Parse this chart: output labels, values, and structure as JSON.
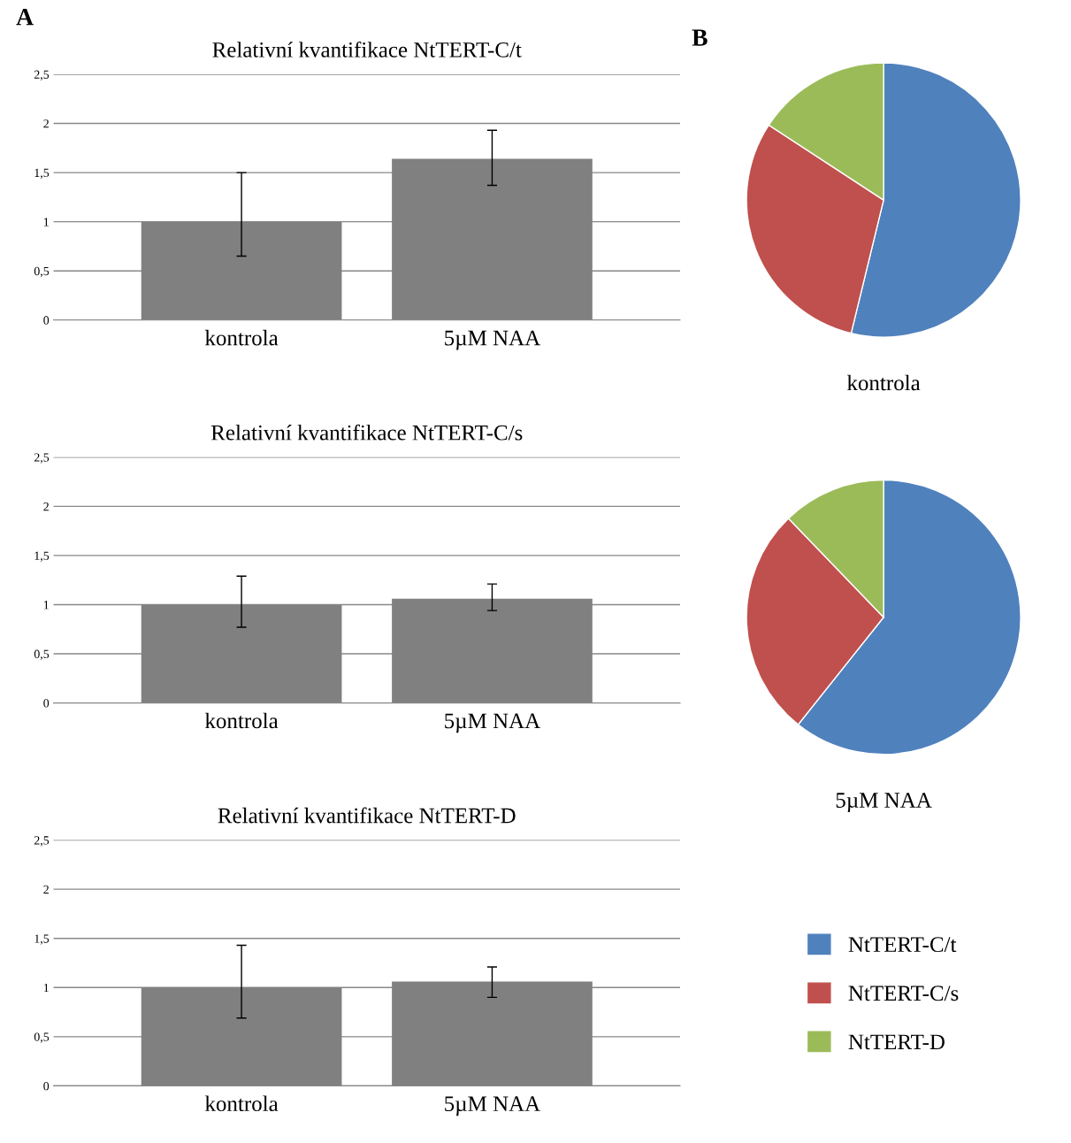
{
  "chart_data": [
    {
      "type": "bar",
      "title": "Relativní kvantifikace NtTERT-C/t",
      "annotations": [
        "A"
      ],
      "categories": [
        "kontrola",
        "5µM NAA"
      ],
      "values": [
        1.0,
        1.64
      ],
      "errors": [
        [
          0.65,
          1.5
        ],
        [
          1.37,
          1.93
        ]
      ],
      "color": "#808080",
      "ylim": [
        0,
        2.5
      ],
      "yticks": [
        0,
        {
          "value": 0.5,
          "label": "0,5"
        },
        1,
        {
          "value": 1.5,
          "label": "1,5"
        },
        2,
        {
          "value": 2.5,
          "label": "2,5"
        }
      ],
      "grid": "y",
      "legend": false
    },
    {
      "type": "bar",
      "title": "Relativní kvantifikace NtTERT-C/s",
      "categories": [
        "kontrola",
        "5µM NAA"
      ],
      "values": [
        1.0,
        1.06
      ],
      "errors": [
        [
          0.77,
          1.29
        ],
        [
          0.94,
          1.21
        ]
      ],
      "color": "#808080",
      "ylim": [
        0,
        2.5
      ],
      "yticks": [
        0,
        {
          "value": 0.5,
          "label": "0,5"
        },
        1,
        {
          "value": 1.5,
          "label": "1,5"
        },
        2,
        {
          "value": 2.5,
          "label": "2,5"
        }
      ],
      "grid": "y",
      "legend": false
    },
    {
      "type": "bar",
      "title": "Relativní kvantifikace NtTERT-D",
      "categories": [
        "kontrola",
        "5µM NAA"
      ],
      "values": [
        1.0,
        1.06
      ],
      "errors": [
        [
          0.69,
          1.43
        ],
        [
          0.9,
          1.21
        ]
      ],
      "color": "#808080",
      "ylim": [
        0,
        2.5
      ],
      "yticks": [
        0,
        {
          "value": 0.5,
          "label": "0,5"
        },
        1,
        {
          "value": 1.5,
          "label": "1,5"
        },
        2,
        {
          "value": 2.5,
          "label": "2,5"
        }
      ],
      "grid": "y",
      "legend": false
    },
    {
      "type": "pie",
      "xlabel": "kontrola",
      "annotations": [
        "B"
      ],
      "categories": [
        "NtTERT-C/t",
        "NtTERT-C/s",
        "NtTERT-D"
      ],
      "values": [
        53.8,
        30.4,
        15.8
      ],
      "colors": [
        "#4f81bd",
        "#c0504d",
        "#9bbb59"
      ],
      "legend": "bottom"
    },
    {
      "type": "pie",
      "xlabel": "5µM NAA",
      "categories": [
        null,
        null,
        null
      ],
      "values": [
        60.7,
        27.1,
        12.2
      ],
      "colors": [
        "#4f81bd",
        "#c0504d",
        "#9bbb59"
      ],
      "legend": false
    }
  ]
}
